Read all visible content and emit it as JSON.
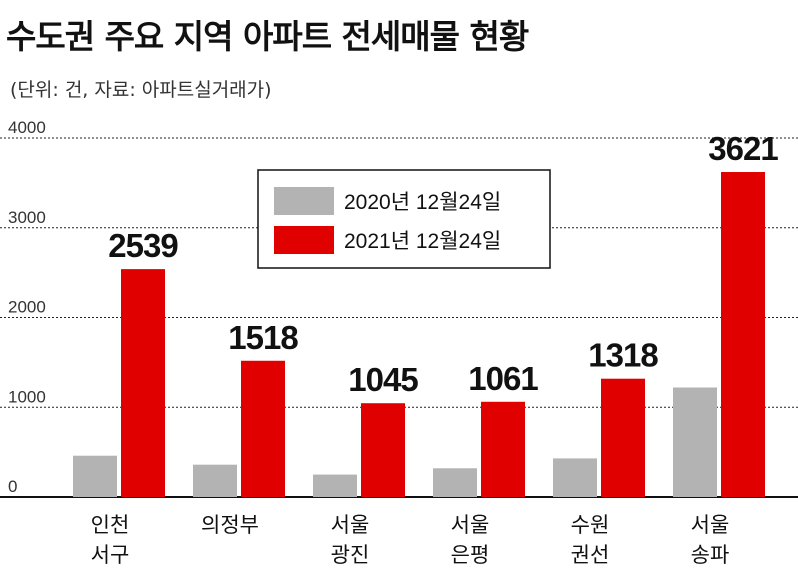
{
  "title": "수도권 주요 지역 아파트 전세매물 현황",
  "subtitle": "(단위: 건, 자료: 아파트실거래가)",
  "chart_data": {
    "type": "bar",
    "categories": [
      [
        "인천",
        "서구"
      ],
      [
        "의정부"
      ],
      [
        "서울",
        "광진"
      ],
      [
        "서울",
        "은평"
      ],
      [
        "수원",
        "권선"
      ],
      [
        "서울",
        "송파"
      ]
    ],
    "series": [
      {
        "name": "2020년 12월24일",
        "color": "#b3b3b3",
        "values": [
          460,
          360,
          250,
          320,
          430,
          1220
        ]
      },
      {
        "name": "2021년 12월24일",
        "color": "#e00000",
        "values": [
          2539,
          1518,
          1045,
          1061,
          1318,
          3621
        ]
      }
    ],
    "data_labels": [
      "2539",
      "1518",
      "1045",
      "1061",
      "1318",
      "3621"
    ],
    "ylim": [
      0,
      4000
    ],
    "yticks": [
      0,
      1000,
      2000,
      3000,
      4000
    ],
    "grid": true,
    "legend_position": "top-center"
  }
}
